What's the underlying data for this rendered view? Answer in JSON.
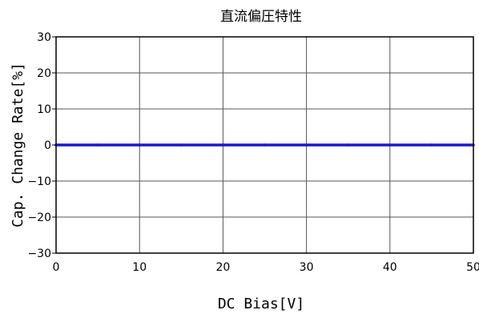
{
  "chart_data": {
    "type": "line",
    "title": "直流偏圧特性",
    "xlabel": "DC Bias[V]",
    "ylabel": "Cap. Change Rate[%]",
    "xlim": [
      0,
      50
    ],
    "ylim": [
      -30,
      30
    ],
    "xticks": [
      0,
      10,
      20,
      30,
      40,
      50
    ],
    "yticks": [
      -30,
      -20,
      -10,
      0,
      10,
      20,
      30
    ],
    "grid": true,
    "series": [
      {
        "color": "#1a1acc",
        "x": [
          0,
          5,
          10,
          15,
          20,
          25,
          30,
          35,
          40,
          45,
          50
        ],
        "y": [
          0,
          0,
          0,
          0,
          0,
          0,
          0,
          0,
          0,
          0,
          0
        ]
      }
    ]
  }
}
